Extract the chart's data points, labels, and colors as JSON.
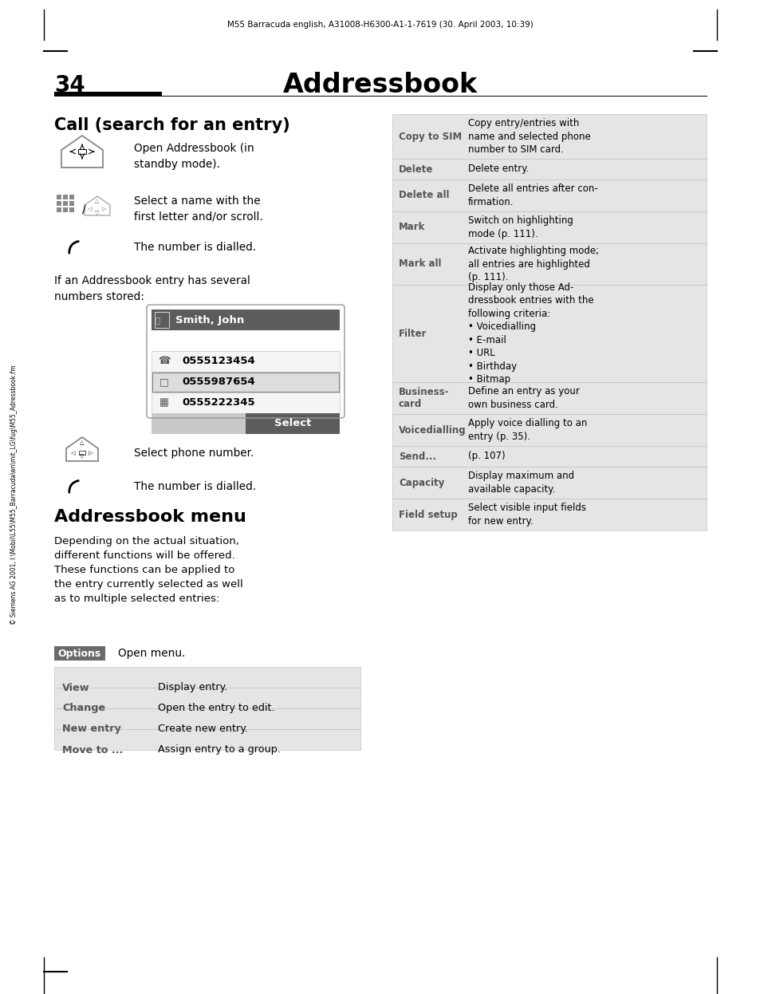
{
  "header_text": "M55 Barracuda english, A31008-H6300-A1-1-7619 (30. April 2003, 10:39)",
  "page_number": "34",
  "page_title": "Addressbook",
  "section1_title": "Call (search for an entry)",
  "step1_text": "Open Addressbook (in\nstandby mode).",
  "step2_text": "Select a name with the\nfirst letter and/or scroll.",
  "step3_text": "The number is dialled.",
  "mid_text": "If an Addressbook entry has several\nnumbers stored:",
  "phone_entry_name": "Smith, John",
  "phone_numbers": [
    "0555123454",
    "0555987654",
    "0555222345"
  ],
  "select_btn": "Select",
  "step4_text": "Select phone number.",
  "step5_text": "The number is dialled.",
  "section2_title": "Addressbook menu",
  "section2_desc": "Depending on the actual situation,\ndifferent functions will be offered.\nThese functions can be applied to\nthe entry currently selected as well\nas to multiple selected entries:",
  "options_btn": "Options",
  "options_text": "Open menu.",
  "left_table": [
    [
      "View",
      "Display entry."
    ],
    [
      "Change",
      "Open the entry to edit."
    ],
    [
      "New entry",
      "Create new entry."
    ],
    [
      "Move to ...",
      "Assign entry to a group."
    ]
  ],
  "right_table": [
    [
      "Copy to SIM",
      "Copy entry/entries with\nname and selected phone\nnumber to SIM card.",
      56
    ],
    [
      "Delete",
      "Delete entry.",
      26
    ],
    [
      "Delete all",
      "Delete all entries after con-\nfirmation.",
      40
    ],
    [
      "Mark",
      "Switch on highlighting\nmode (p. 111).",
      40
    ],
    [
      "Mark all",
      "Activate highlighting mode;\nall entries are highlighted\n(p. 111).",
      52
    ],
    [
      "Filter",
      "Display only those Ad-\ndressbook entries with the\nfollowing criteria:\n• Voicedialling\n• E-mail\n• URL\n• Birthday\n• Bitmap",
      122
    ],
    [
      "Business-\ncard",
      "Define an entry as your\nown business card.",
      40
    ],
    [
      "Voicedialling",
      "Apply voice dialling to an\nentry (p. 35).",
      40
    ],
    [
      "Send...",
      "(p. 107)",
      26
    ],
    [
      "Capacity",
      "Display maximum and\navailable capacity.",
      40
    ],
    [
      "Field setup",
      "Select visible input fields\nfor new entry.",
      40
    ]
  ],
  "sidebar_text": "© Siemens AG 2001, I:\\Mobil\\L55\\M55_Barracuda\\en\\mit_LG\\fug\\M55_Adressbook.fm",
  "bg_color": "#ffffff",
  "table_bg": "#e5e5e5",
  "dark_bg": "#5c5c5c",
  "options_bg": "#6a6a6a"
}
